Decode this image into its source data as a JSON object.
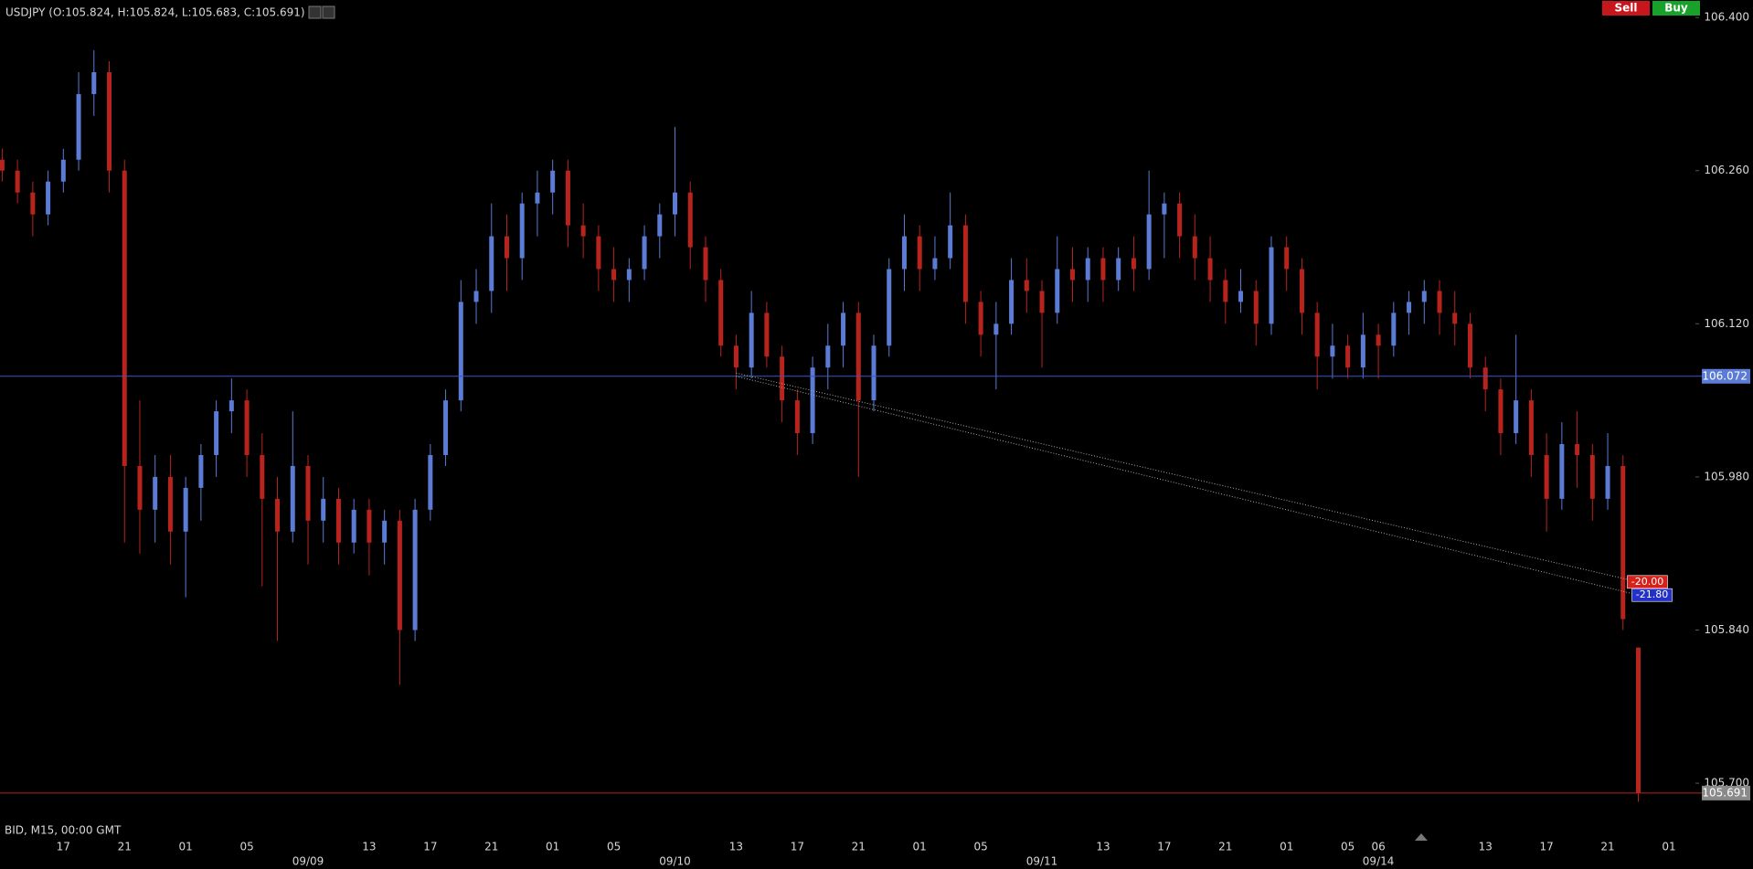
{
  "chart_data": {
    "type": "candlestick",
    "title": "USDJPY (O:105.824, H:105.824, L:105.683, C:105.691)",
    "info": "BID, M15, 00:00 GMT",
    "buttons": [
      "Sell",
      "Buy"
    ],
    "up_color": "#5b7bd5",
    "down_color": "#b8241c",
    "ylim": [
      105.665,
      106.416
    ],
    "yticks": [
      {
        "value": 105.7,
        "label": "105.700"
      },
      {
        "value": 105.84,
        "label": "105.840"
      },
      {
        "value": 105.98,
        "label": "105.980"
      },
      {
        "value": 106.12,
        "label": "106.120"
      },
      {
        "value": 106.26,
        "label": "106.260"
      },
      {
        "value": 106.4,
        "label": "106.400"
      }
    ],
    "categories": [
      null,
      null,
      null,
      null,
      "17",
      null,
      null,
      null,
      "21",
      null,
      null,
      null,
      "01",
      null,
      null,
      null,
      "05",
      null,
      null,
      null,
      null,
      null,
      null,
      null,
      "13",
      null,
      null,
      null,
      "17",
      null,
      null,
      null,
      "21",
      null,
      null,
      null,
      "01",
      null,
      null,
      null,
      "05",
      null,
      null,
      null,
      null,
      null,
      null,
      null,
      "13",
      null,
      null,
      null,
      "17",
      null,
      null,
      null,
      "21",
      null,
      null,
      null,
      "01",
      null,
      null,
      null,
      "05",
      null,
      null,
      null,
      null,
      null,
      null,
      null,
      "13",
      null,
      null,
      null,
      "17",
      null,
      null,
      null,
      "21",
      null,
      null,
      null,
      "01",
      null,
      null,
      null,
      "05",
      null,
      "06",
      null,
      null,
      null,
      null,
      null,
      null,
      "13",
      null,
      null,
      null,
      "17",
      null,
      null,
      null,
      "21",
      null,
      null,
      null,
      "01"
    ],
    "date_labels": [
      null,
      null,
      null,
      null,
      null,
      null,
      null,
      null,
      null,
      null,
      null,
      null,
      null,
      null,
      null,
      null,
      null,
      null,
      null,
      null,
      "09/09",
      null,
      null,
      null,
      null,
      null,
      null,
      null,
      null,
      null,
      null,
      null,
      null,
      null,
      null,
      null,
      null,
      null,
      null,
      null,
      null,
      null,
      null,
      null,
      "09/10",
      null,
      null,
      null,
      null,
      null,
      null,
      null,
      null,
      null,
      null,
      null,
      null,
      null,
      null,
      null,
      null,
      null,
      null,
      null,
      null,
      null,
      null,
      null,
      "09/11",
      null,
      null,
      null,
      null,
      null,
      null,
      null,
      null,
      null,
      null,
      null,
      null,
      null,
      null,
      null,
      null,
      null,
      null,
      null,
      null,
      null,
      "09/14",
      null,
      null,
      null,
      null,
      null,
      null,
      null,
      null,
      null,
      null,
      null,
      null,
      null,
      null,
      null,
      null,
      null,
      null,
      null
    ],
    "open": [
      106.27,
      106.26,
      106.24,
      106.22,
      106.25,
      106.27,
      106.33,
      106.35,
      106.26,
      105.99,
      105.95,
      105.98,
      105.93,
      105.97,
      106.0,
      106.04,
      106.05,
      106.0,
      105.96,
      105.93,
      105.99,
      105.94,
      105.96,
      105.92,
      105.95,
      105.92,
      105.94,
      105.84,
      105.95,
      106.0,
      106.05,
      106.14,
      106.15,
      106.2,
      106.18,
      106.23,
      106.24,
      106.26,
      106.21,
      106.2,
      106.17,
      106.16,
      106.17,
      106.2,
      106.22,
      106.24,
      106.19,
      106.16,
      106.1,
      106.08,
      106.13,
      106.09,
      106.05,
      106.02,
      106.08,
      106.1,
      106.13,
      106.05,
      106.1,
      106.17,
      106.2,
      106.17,
      106.18,
      106.21,
      106.14,
      106.11,
      106.12,
      106.16,
      106.15,
      106.13,
      106.17,
      106.16,
      106.18,
      106.16,
      106.18,
      106.17,
      106.22,
      106.23,
      106.2,
      106.18,
      106.16,
      106.14,
      106.15,
      106.12,
      106.19,
      106.17,
      106.13,
      106.09,
      106.1,
      106.08,
      106.11,
      106.1,
      106.13,
      106.14,
      106.15,
      106.13,
      106.12,
      106.08,
      106.06,
      106.02,
      106.05,
      106.0,
      105.96,
      106.01,
      106.0,
      105.96,
      105.99,
      105.824,
      null,
      null
    ],
    "high": [
      106.28,
      106.27,
      106.25,
      106.26,
      106.28,
      106.35,
      106.37,
      106.36,
      106.27,
      106.05,
      106.0,
      106.0,
      105.98,
      106.01,
      106.05,
      106.07,
      106.06,
      106.02,
      105.98,
      106.04,
      106.0,
      105.98,
      105.97,
      105.96,
      105.96,
      105.95,
      105.95,
      105.96,
      106.01,
      106.06,
      106.16,
      106.17,
      106.23,
      106.22,
      106.24,
      106.26,
      106.27,
      106.27,
      106.23,
      106.21,
      106.19,
      106.18,
      106.21,
      106.23,
      106.3,
      106.25,
      106.2,
      106.17,
      106.11,
      106.15,
      106.14,
      106.1,
      106.06,
      106.09,
      106.12,
      106.14,
      106.14,
      106.11,
      106.18,
      106.22,
      106.21,
      106.2,
      106.24,
      106.22,
      106.15,
      106.14,
      106.18,
      106.18,
      106.16,
      106.2,
      106.19,
      106.19,
      106.19,
      106.19,
      106.2,
      106.26,
      106.24,
      106.24,
      106.22,
      106.2,
      106.17,
      106.17,
      106.16,
      106.2,
      106.2,
      106.18,
      106.14,
      106.12,
      106.11,
      106.13,
      106.12,
      106.14,
      106.15,
      106.16,
      106.16,
      106.15,
      106.13,
      106.09,
      106.07,
      106.11,
      106.06,
      106.02,
      106.03,
      106.04,
      106.01,
      106.02,
      106.0,
      105.824,
      null,
      null
    ],
    "low": [
      106.25,
      106.23,
      106.2,
      106.21,
      106.24,
      106.26,
      106.31,
      106.24,
      105.92,
      105.91,
      105.92,
      105.9,
      105.87,
      105.94,
      105.98,
      106.02,
      105.98,
      105.88,
      105.83,
      105.92,
      105.9,
      105.92,
      105.9,
      105.91,
      105.89,
      105.9,
      105.79,
      105.83,
      105.94,
      105.99,
      106.04,
      106.12,
      106.13,
      106.15,
      106.16,
      106.2,
      106.22,
      106.19,
      106.18,
      106.15,
      106.14,
      106.14,
      106.16,
      106.18,
      106.2,
      106.17,
      106.14,
      106.09,
      106.06,
      106.07,
      106.08,
      106.03,
      106.0,
      106.01,
      106.06,
      106.08,
      105.98,
      106.04,
      106.09,
      106.15,
      106.15,
      106.16,
      106.17,
      106.12,
      106.09,
      106.06,
      106.11,
      106.13,
      106.08,
      106.12,
      106.14,
      106.14,
      106.14,
      106.15,
      106.15,
      106.16,
      106.18,
      106.18,
      106.16,
      106.14,
      106.12,
      106.13,
      106.1,
      106.11,
      106.15,
      106.11,
      106.06,
      106.07,
      106.07,
      106.07,
      106.07,
      106.09,
      106.11,
      106.12,
      106.11,
      106.1,
      106.07,
      106.04,
      106.0,
      106.01,
      105.98,
      105.93,
      105.95,
      105.97,
      105.94,
      105.95,
      105.84,
      105.683,
      null,
      null
    ],
    "close": [
      106.26,
      106.24,
      106.22,
      106.25,
      106.27,
      106.33,
      106.35,
      106.26,
      105.99,
      105.95,
      105.98,
      105.93,
      105.97,
      106.0,
      106.04,
      106.05,
      106.0,
      105.96,
      105.93,
      105.99,
      105.94,
      105.96,
      105.92,
      105.95,
      105.92,
      105.94,
      105.84,
      105.95,
      106.0,
      106.05,
      106.14,
      106.15,
      106.2,
      106.18,
      106.23,
      106.24,
      106.26,
      106.21,
      106.2,
      106.17,
      106.16,
      106.17,
      106.2,
      106.22,
      106.24,
      106.19,
      106.16,
      106.1,
      106.08,
      106.13,
      106.09,
      106.05,
      106.02,
      106.08,
      106.1,
      106.13,
      106.05,
      106.1,
      106.17,
      106.2,
      106.17,
      106.18,
      106.21,
      106.14,
      106.11,
      106.12,
      106.16,
      106.15,
      106.13,
      106.17,
      106.16,
      106.18,
      106.16,
      106.18,
      106.17,
      106.22,
      106.23,
      106.2,
      106.18,
      106.16,
      106.14,
      106.15,
      106.12,
      106.19,
      106.17,
      106.13,
      106.09,
      106.1,
      106.08,
      106.11,
      106.1,
      106.13,
      106.14,
      106.15,
      106.13,
      106.12,
      106.08,
      106.06,
      106.02,
      106.05,
      106.0,
      105.96,
      106.01,
      106.0,
      105.96,
      105.99,
      105.85,
      105.691,
      null,
      null
    ],
    "hlines": [
      {
        "value": 106.072,
        "color": "#3a55c8",
        "label_color": "#5b7bd5"
      },
      {
        "value": 105.691,
        "color": "#b8241c",
        "label_color": "#8a8a8a"
      }
    ],
    "trendlines": [
      {
        "start_index": 48,
        "start": 106.075,
        "end_index": 107,
        "end": 105.884,
        "label": "-20.00",
        "label_color": "#d8201a"
      },
      {
        "start_index": 48,
        "start": 106.072,
        "end_index": 107,
        "end": 105.872,
        "label": "-21.80",
        "label_color": "#2431c8"
      }
    ]
  }
}
